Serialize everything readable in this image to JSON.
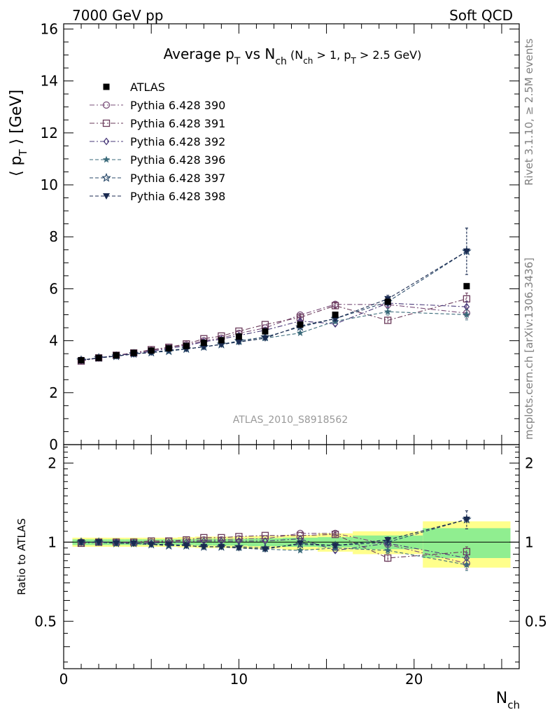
{
  "header": {
    "left": "7000 GeV pp",
    "right": "Soft QCD"
  },
  "side_labels": {
    "rivet": "Rivet 3.1.10, ≥ 2.5M events",
    "mcplots": "mcplots.cern.ch [arXiv:1306.3436]"
  },
  "chart_data": {
    "type": "scatter",
    "title": {
      "main": "Average p",
      "main_sub": "T",
      "vs": " vs N",
      "vs_sub": "ch",
      "cond_open": " (N",
      "cond_sub1": "ch",
      "cond_mid": " > 1, p",
      "cond_sub2": "T",
      "cond_close": " > 2.5 GeV)"
    },
    "analysis_id": "ATLAS_2010_S8918562",
    "xlabel": {
      "main": "N",
      "sub": "ch"
    },
    "ylabel": {
      "open": "⟨ p",
      "sub": "T",
      "close": " ⟩  [GeV]"
    },
    "ratio_ylabel": "Ratio to ATLAS",
    "xlim": [
      0,
      26
    ],
    "ylim": [
      0,
      16.2
    ],
    "ratio_ylim": [
      0.33,
      2.35
    ],
    "xticks": [
      0,
      10,
      20
    ],
    "yticks": [
      0,
      2,
      4,
      6,
      8,
      10,
      12,
      14,
      16
    ],
    "ratio_yticks": [
      0.5,
      1,
      2
    ],
    "x": [
      1,
      2,
      3,
      4,
      5,
      6,
      7,
      8,
      9,
      10,
      11.5,
      13.5,
      15.5,
      18.5,
      23
    ],
    "bin_edges": [
      0.5,
      1.5,
      2.5,
      3.5,
      4.5,
      5.5,
      6.5,
      7.5,
      8.5,
      9.5,
      10.5,
      12.5,
      14.5,
      16.5,
      20.5,
      25.5
    ],
    "ref_band_inner": [
      0.025,
      0.025,
      0.025,
      0.025,
      0.025,
      0.025,
      0.025,
      0.03,
      0.03,
      0.03,
      0.035,
      0.04,
      0.045,
      0.06,
      0.13
    ],
    "ref_band_outer": [
      0.04,
      0.04,
      0.04,
      0.04,
      0.04,
      0.04,
      0.045,
      0.05,
      0.05,
      0.05,
      0.055,
      0.065,
      0.08,
      0.1,
      0.2
    ],
    "data": {
      "name": "ATLAS",
      "values": [
        3.25,
        3.34,
        3.44,
        3.53,
        3.62,
        3.71,
        3.8,
        3.92,
        4.02,
        4.16,
        4.36,
        4.62,
        5.0,
        5.5,
        6.1
      ],
      "color": "#000000"
    },
    "series": [
      {
        "name": "Pythia 6.428 390",
        "marker": "circle-open",
        "dash": "dashdot",
        "color": "#7a4f7a",
        "ratio": [
          1.0,
          1.0,
          1.0,
          1.0,
          1.0,
          1.01,
          1.01,
          1.02,
          1.02,
          1.03,
          1.03,
          1.08,
          1.08,
          0.98,
          0.83
        ],
        "err": [
          0.005,
          0.005,
          0.005,
          0.005,
          0.005,
          0.005,
          0.006,
          0.006,
          0.007,
          0.008,
          0.01,
          0.012,
          0.018,
          0.025,
          0.04
        ]
      },
      {
        "name": "Pythia 6.428 391",
        "marker": "square-open",
        "dash": "dashdot",
        "color": "#6a3a5a",
        "ratio": [
          0.99,
          1.0,
          1.0,
          1.0,
          1.01,
          1.01,
          1.02,
          1.04,
          1.04,
          1.05,
          1.06,
          1.06,
          1.07,
          0.87,
          0.92
        ],
        "err": [
          0.005,
          0.005,
          0.005,
          0.005,
          0.005,
          0.005,
          0.006,
          0.006,
          0.007,
          0.008,
          0.01,
          0.012,
          0.018,
          0.025,
          0.04
        ]
      },
      {
        "name": "Pythia 6.428 392",
        "marker": "diamond-open",
        "dash": "dashdot",
        "color": "#4a3a7a",
        "ratio": [
          1.0,
          1.0,
          1.0,
          0.99,
          0.99,
          1.0,
          1.0,
          1.01,
          1.01,
          1.01,
          1.01,
          1.03,
          0.93,
          0.99,
          0.87
        ],
        "err": [
          0.005,
          0.005,
          0.005,
          0.005,
          0.005,
          0.005,
          0.006,
          0.006,
          0.007,
          0.008,
          0.01,
          0.012,
          0.018,
          0.025,
          0.04
        ]
      },
      {
        "name": "Pythia 6.428 396",
        "marker": "star-filled",
        "dash": "dashed",
        "color": "#3a6a7a",
        "ratio": [
          1.0,
          1.0,
          0.99,
          0.99,
          0.98,
          0.97,
          0.97,
          0.96,
          0.96,
          0.95,
          0.94,
          0.93,
          0.95,
          0.93,
          0.82
        ],
        "err": [
          0.005,
          0.005,
          0.005,
          0.005,
          0.005,
          0.005,
          0.006,
          0.006,
          0.007,
          0.008,
          0.01,
          0.012,
          0.018,
          0.025,
          0.04
        ]
      },
      {
        "name": "Pythia 6.428 397",
        "marker": "star-open",
        "dash": "dashed",
        "color": "#2a4a6a",
        "ratio": [
          1.0,
          1.0,
          0.99,
          0.99,
          0.98,
          0.97,
          0.97,
          0.96,
          0.96,
          0.96,
          0.95,
          0.98,
          0.97,
          1.0,
          1.22
        ],
        "err": [
          0.005,
          0.005,
          0.005,
          0.005,
          0.005,
          0.005,
          0.006,
          0.006,
          0.007,
          0.008,
          0.01,
          0.012,
          0.018,
          0.025,
          0.06
        ]
      },
      {
        "name": "Pythia 6.428 398",
        "marker": "triangle-down-filled",
        "dash": "dashed",
        "color": "#1a2a50",
        "ratio": [
          1.0,
          1.0,
          0.99,
          0.99,
          0.98,
          0.98,
          0.97,
          0.96,
          0.96,
          0.95,
          0.94,
          0.99,
          0.97,
          1.02,
          1.22
        ],
        "err": [
          0.005,
          0.005,
          0.005,
          0.005,
          0.005,
          0.005,
          0.006,
          0.006,
          0.007,
          0.008,
          0.01,
          0.012,
          0.018,
          0.025,
          0.06
        ]
      }
    ]
  }
}
